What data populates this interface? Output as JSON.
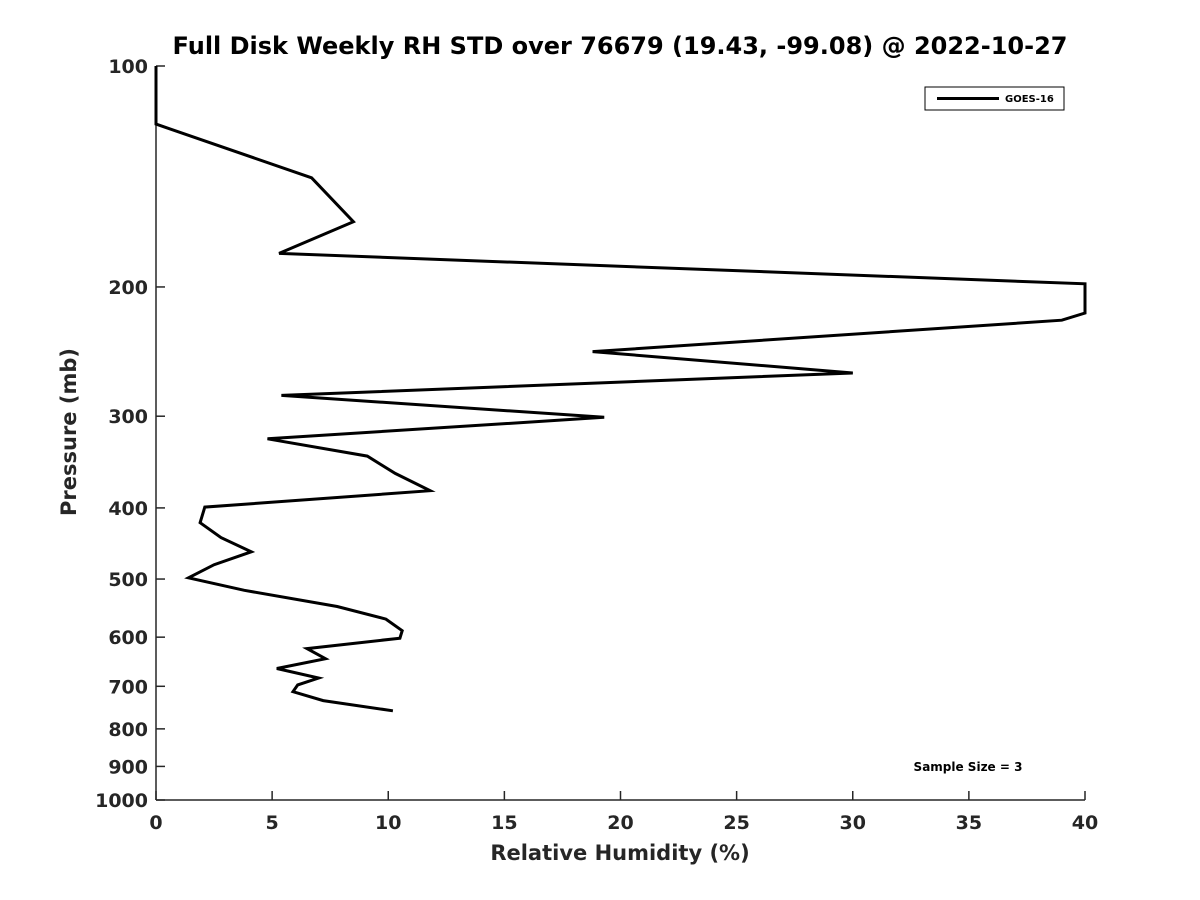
{
  "chart_data": {
    "type": "line",
    "title": "Full Disk Weekly RH STD over 76679 (19.43, -99.08) @ 2022-10-27",
    "xlabel": "Relative Humidity (%)",
    "ylabel": "Pressure (mb)",
    "xlim": [
      0,
      40
    ],
    "ylim": [
      100,
      1000
    ],
    "yscale": "log",
    "y_reversed": true,
    "grid": false,
    "legend_position": "top-right",
    "x_ticks": [
      0,
      5,
      10,
      15,
      20,
      25,
      30,
      35,
      40
    ],
    "y_ticks": [
      100,
      200,
      300,
      400,
      500,
      600,
      700,
      800,
      900,
      1000
    ],
    "series": [
      {
        "name": "GOES-16",
        "color": "#000000",
        "points": [
          {
            "x": 0.0,
            "y": 100
          },
          {
            "x": 0.0,
            "y": 120
          },
          {
            "x": 6.7,
            "y": 142
          },
          {
            "x": 8.5,
            "y": 163
          },
          {
            "x": 5.3,
            "y": 180
          },
          {
            "x": 40.0,
            "y": 198
          },
          {
            "x": 40.0,
            "y": 217
          },
          {
            "x": 39.0,
            "y": 222
          },
          {
            "x": 18.8,
            "y": 245
          },
          {
            "x": 30.0,
            "y": 262
          },
          {
            "x": 5.4,
            "y": 281
          },
          {
            "x": 19.3,
            "y": 301
          },
          {
            "x": 4.8,
            "y": 322
          },
          {
            "x": 9.1,
            "y": 340
          },
          {
            "x": 10.3,
            "y": 359
          },
          {
            "x": 11.8,
            "y": 379
          },
          {
            "x": 2.1,
            "y": 399
          },
          {
            "x": 1.9,
            "y": 419
          },
          {
            "x": 2.8,
            "y": 439
          },
          {
            "x": 4.1,
            "y": 459
          },
          {
            "x": 2.5,
            "y": 478
          },
          {
            "x": 1.4,
            "y": 498
          },
          {
            "x": 3.8,
            "y": 518
          },
          {
            "x": 7.8,
            "y": 545
          },
          {
            "x": 9.9,
            "y": 567
          },
          {
            "x": 10.6,
            "y": 588
          },
          {
            "x": 10.5,
            "y": 602
          },
          {
            "x": 6.5,
            "y": 622
          },
          {
            "x": 7.3,
            "y": 642
          },
          {
            "x": 5.2,
            "y": 662
          },
          {
            "x": 7.0,
            "y": 682
          },
          {
            "x": 6.1,
            "y": 697
          },
          {
            "x": 5.9,
            "y": 712
          },
          {
            "x": 7.2,
            "y": 732
          },
          {
            "x": 10.2,
            "y": 756
          }
        ]
      }
    ],
    "annotations": [
      {
        "text": "Sample Size = 3",
        "position": "bottom-right"
      }
    ]
  }
}
